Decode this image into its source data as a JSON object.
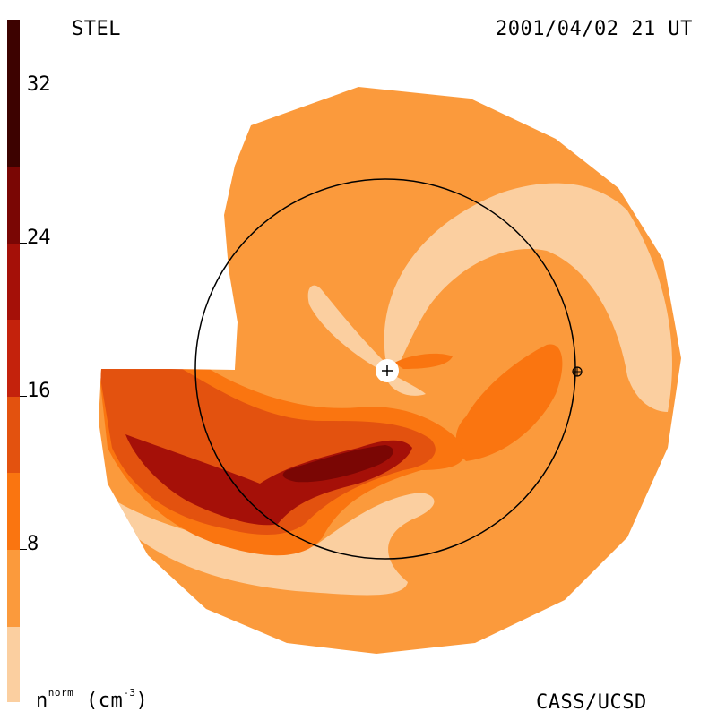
{
  "header": {
    "left_title": "STEL",
    "right_title": "2001/04/02 21 UT"
  },
  "footer": {
    "credit": "CASS/UCSD"
  },
  "colorbar": {
    "unit_base": "n",
    "unit_super": "norm",
    "unit_rest": "(cm",
    "unit_exp": "-3",
    "unit_close": ")",
    "ticks": [
      "32",
      "24",
      "16",
      "8"
    ],
    "tick_values": [
      32,
      24,
      16,
      8
    ],
    "range": [
      0,
      36
    ],
    "colors": [
      "#fbcfa0",
      "#fb9a3c",
      "#fa7510",
      "#e3520f",
      "#c4220c",
      "#a51008",
      "#7a0604",
      "#3d0200"
    ]
  },
  "map": {
    "colors": {
      "background": "#fb9a3c",
      "light": "#fbcfa0",
      "medium": "#fa7510",
      "dark": "#e3520f",
      "darker": "#a51008",
      "darkest": "#7a0604"
    }
  }
}
